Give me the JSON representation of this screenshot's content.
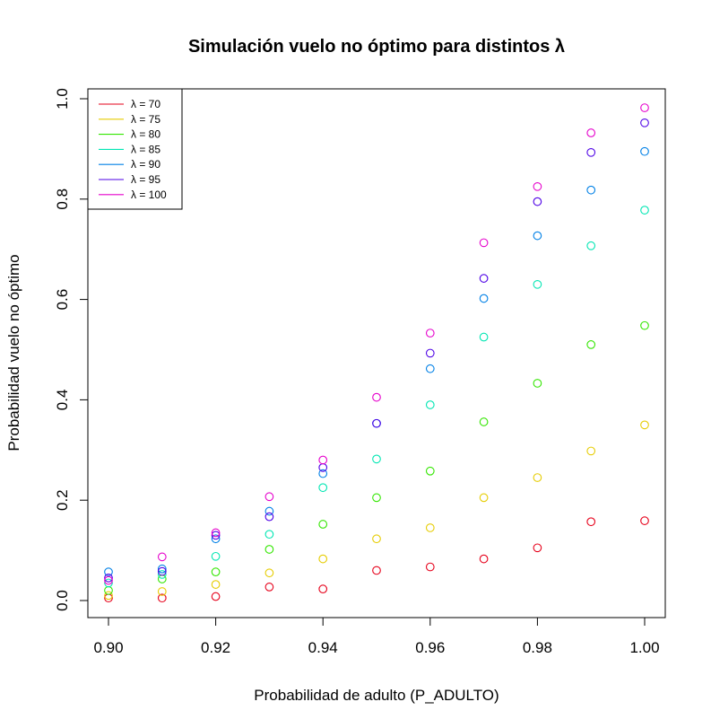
{
  "chart_data": {
    "type": "scatter",
    "title": "Simulación vuelo no óptimo para distintos λ",
    "xlabel": "Probabilidad de adulto (P_ADULTO)",
    "ylabel": "Probabilidad vuelo no óptimo",
    "xlim": [
      0.9,
      1.0
    ],
    "ylim": [
      0.0,
      1.0
    ],
    "xticks": [
      "0.90",
      "0.92",
      "0.94",
      "0.96",
      "0.98",
      "1.00"
    ],
    "yticks": [
      "0.0",
      "0.2",
      "0.4",
      "0.6",
      "0.8",
      "1.0"
    ],
    "grid": false,
    "legend_position": "top-left",
    "x": [
      0.9,
      0.91,
      0.92,
      0.93,
      0.94,
      0.95,
      0.96,
      0.97,
      0.98,
      0.99,
      1.0
    ],
    "series": [
      {
        "name": "λ = 70",
        "color": "#e6001a",
        "values": [
          0.005,
          0.005,
          0.008,
          0.027,
          0.023,
          0.06,
          0.067,
          0.083,
          0.105,
          0.157,
          0.159
        ]
      },
      {
        "name": "λ = 75",
        "color": "#e6cc00",
        "values": [
          0.01,
          0.018,
          0.032,
          0.055,
          0.083,
          0.123,
          0.145,
          0.205,
          0.245,
          0.298,
          0.35
        ]
      },
      {
        "name": "λ = 80",
        "color": "#33e600",
        "values": [
          0.02,
          0.043,
          0.057,
          0.102,
          0.152,
          0.205,
          0.258,
          0.356,
          0.433,
          0.51,
          0.548
        ]
      },
      {
        "name": "λ = 85",
        "color": "#00e6b3",
        "values": [
          0.035,
          0.052,
          0.088,
          0.132,
          0.225,
          0.282,
          0.39,
          0.525,
          0.63,
          0.707,
          0.778
        ]
      },
      {
        "name": "λ = 90",
        "color": "#0080e6",
        "values": [
          0.057,
          0.063,
          0.123,
          0.178,
          0.253,
          0.353,
          0.462,
          0.602,
          0.727,
          0.818,
          0.895
        ]
      },
      {
        "name": "λ = 95",
        "color": "#4d00e6",
        "values": [
          0.045,
          0.058,
          0.13,
          0.167,
          0.265,
          0.353,
          0.493,
          0.642,
          0.795,
          0.893,
          0.952
        ]
      },
      {
        "name": "λ = 100",
        "color": "#e600cc",
        "values": [
          0.04,
          0.087,
          0.135,
          0.207,
          0.28,
          0.405,
          0.533,
          0.713,
          0.825,
          0.932,
          0.982
        ]
      }
    ]
  }
}
